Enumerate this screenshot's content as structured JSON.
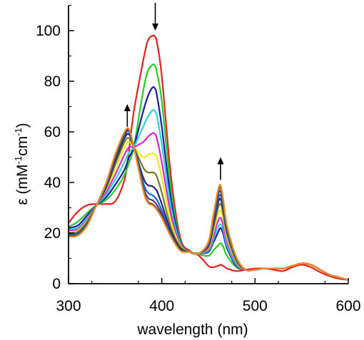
{
  "chart_data": {
    "type": "line",
    "xlabel": "wavelength (nm)",
    "ylabel": {
      "prefix": "ε (mM",
      "sup1": "-1",
      "mid": "cm",
      "sup2": "-1",
      "suffix": ")"
    },
    "xlim": [
      300,
      600
    ],
    "ylim": [
      0,
      110
    ],
    "x_ticks": [
      300,
      400,
      500,
      600
    ],
    "y_ticks": [
      0,
      20,
      40,
      60,
      80,
      100
    ],
    "grid": false,
    "legend": "none",
    "arrows": [
      {
        "x": 363,
        "y_from": 62,
        "y_to": 71,
        "direction": "up"
      },
      {
        "x": 393,
        "y_from": 111,
        "y_to": 100,
        "direction": "down"
      },
      {
        "x": 463,
        "y_from": 41,
        "y_to": 50,
        "direction": "up"
      }
    ],
    "wavelength": [
      300,
      310,
      320,
      330,
      340,
      350,
      360,
      365,
      370,
      380,
      385,
      390,
      393,
      395,
      400,
      410,
      420,
      430,
      440,
      450,
      455,
      460,
      463,
      466,
      470,
      480,
      490,
      500,
      510,
      520,
      530,
      540,
      550,
      560,
      570,
      580,
      590,
      600
    ],
    "series": [
      {
        "color": "#e8201c",
        "values": [
          24,
          28.5,
          31,
          31.5,
          31.5,
          32.5,
          41,
          53,
          68,
          88,
          96,
          98,
          97.5,
          95,
          82,
          42,
          18,
          13,
          11,
          7,
          6.5,
          7,
          7.5,
          7,
          6,
          5,
          5.5,
          6,
          6,
          5.5,
          5,
          6.5,
          7.5,
          6.5,
          4.5,
          3,
          2,
          1.5
        ]
      },
      {
        "color": "#21d021",
        "values": [
          22.5,
          24.5,
          28,
          31,
          33,
          37,
          43,
          48,
          54,
          76,
          84,
          86.5,
          86,
          83,
          72,
          37,
          17,
          12.5,
          11.5,
          11,
          13,
          15,
          16,
          14.5,
          11,
          6.5,
          5.5,
          5.5,
          6,
          6,
          6,
          7,
          8,
          7.5,
          5.5,
          3.5,
          2.5,
          1.5
        ]
      },
      {
        "color": "#1a1aa6",
        "values": [
          22,
          23,
          27,
          31,
          34,
          39,
          45,
          50,
          54,
          68,
          74,
          77.5,
          77,
          74,
          62,
          33,
          16.5,
          12.5,
          12,
          12.5,
          16,
          20,
          22,
          19.5,
          14,
          7,
          5.5,
          5.5,
          6,
          6,
          6,
          7,
          8,
          7.5,
          5.5,
          3.5,
          2.5,
          1.5
        ]
      },
      {
        "color": "#20d8e0",
        "values": [
          21.5,
          22,
          26,
          31,
          35,
          41,
          48,
          52,
          54,
          62,
          66,
          68.5,
          68,
          66,
          55,
          30,
          16,
          12.5,
          12,
          13,
          17,
          22,
          23.5,
          21,
          15,
          7.5,
          5.5,
          5.5,
          6,
          6,
          6,
          7,
          8,
          7.5,
          5.5,
          3.5,
          2.5,
          1.5
        ]
      },
      {
        "color": "#e020e0",
        "values": [
          21,
          21.5,
          25.5,
          31,
          36,
          43,
          51,
          54,
          54,
          56,
          58,
          59.5,
          59,
          57,
          48,
          27,
          15.5,
          12.5,
          12,
          13.5,
          18.5,
          24.5,
          26,
          23,
          16.5,
          8,
          5.5,
          5.5,
          6,
          6,
          6,
          7,
          8,
          7.5,
          5.5,
          3.5,
          2.5,
          1.5
        ]
      },
      {
        "color": "#ecec18",
        "values": [
          20.5,
          21,
          25,
          31,
          37,
          45,
          54,
          56,
          54,
          50,
          51,
          51.5,
          51,
          49.5,
          42,
          24.5,
          15,
          12.5,
          12,
          14,
          20,
          27,
          29,
          25.5,
          18,
          8.5,
          5.5,
          5.5,
          6,
          6,
          6,
          7,
          8,
          7.5,
          5.5,
          3.5,
          2.5,
          1.5
        ]
      },
      {
        "color": "#787a1a",
        "values": [
          20,
          20.5,
          24.5,
          31,
          37.5,
          47,
          56,
          57.5,
          54,
          46,
          44,
          44,
          43.5,
          42,
          36,
          22,
          14.5,
          12.5,
          12,
          14.5,
          21.5,
          29.5,
          31.5,
          27.5,
          19.5,
          9,
          5.5,
          5.5,
          6,
          6,
          6,
          7,
          8,
          7.5,
          5.5,
          3.5,
          2.5,
          1.5
        ]
      },
      {
        "color": "#1f1f7a",
        "values": [
          19.5,
          20,
          24,
          31,
          38,
          48.5,
          57.5,
          59,
          54,
          42,
          39,
          38.5,
          37.5,
          36.5,
          31.5,
          20.5,
          14,
          12.5,
          12,
          15,
          23,
          31.5,
          33.5,
          29,
          20.5,
          9.5,
          5.5,
          5.5,
          6,
          6,
          6,
          7,
          8,
          7.5,
          5.5,
          3.5,
          2.5,
          1.5
        ]
      },
      {
        "color": "#0a70c8",
        "values": [
          19.5,
          20,
          24,
          31,
          38.5,
          49.5,
          58.5,
          60,
          54,
          40,
          36,
          35,
          34,
          33,
          29,
          19.5,
          13.5,
          12.5,
          12,
          15.5,
          24,
          33,
          35,
          30,
          21,
          9.5,
          5.5,
          5.5,
          6,
          6,
          6,
          7,
          8,
          7.5,
          5.5,
          3.5,
          2.5,
          1.5
        ]
      },
      {
        "color": "#6a2a8a",
        "values": [
          19,
          19.5,
          23.5,
          31,
          39,
          50,
          59,
          60.5,
          54,
          38.5,
          34,
          33,
          32,
          31,
          27.5,
          19,
          13.5,
          12.5,
          12,
          16,
          25,
          34.5,
          36.5,
          31,
          22,
          10,
          5.5,
          5.5,
          6,
          6,
          6,
          7,
          8,
          7.5,
          5.5,
          3.5,
          2.5,
          1.5
        ]
      },
      {
        "color": "#3a5a3a",
        "values": [
          19,
          19.5,
          23.5,
          31,
          39.5,
          50.5,
          59.5,
          61,
          54,
          37.5,
          32.5,
          31.5,
          30.5,
          29.5,
          26.5,
          18.5,
          13.5,
          12.5,
          12,
          16.5,
          26,
          35.5,
          38,
          32,
          22.5,
          10,
          5.5,
          5.5,
          6,
          6,
          6,
          7,
          8,
          7.5,
          5.5,
          3.5,
          2.5,
          1.5
        ]
      },
      {
        "color": "#f08c28",
        "values": [
          18.5,
          19,
          23,
          31,
          39.5,
          51,
          60,
          61,
          54,
          37,
          32,
          31,
          30,
          29,
          26,
          18.5,
          13,
          12.5,
          12,
          16.5,
          26.5,
          36.5,
          39,
          33,
          23,
          10.5,
          5.5,
          5.5,
          6,
          6,
          6,
          7,
          8,
          7.5,
          5.5,
          3.5,
          2.5,
          1.5
        ]
      }
    ]
  }
}
